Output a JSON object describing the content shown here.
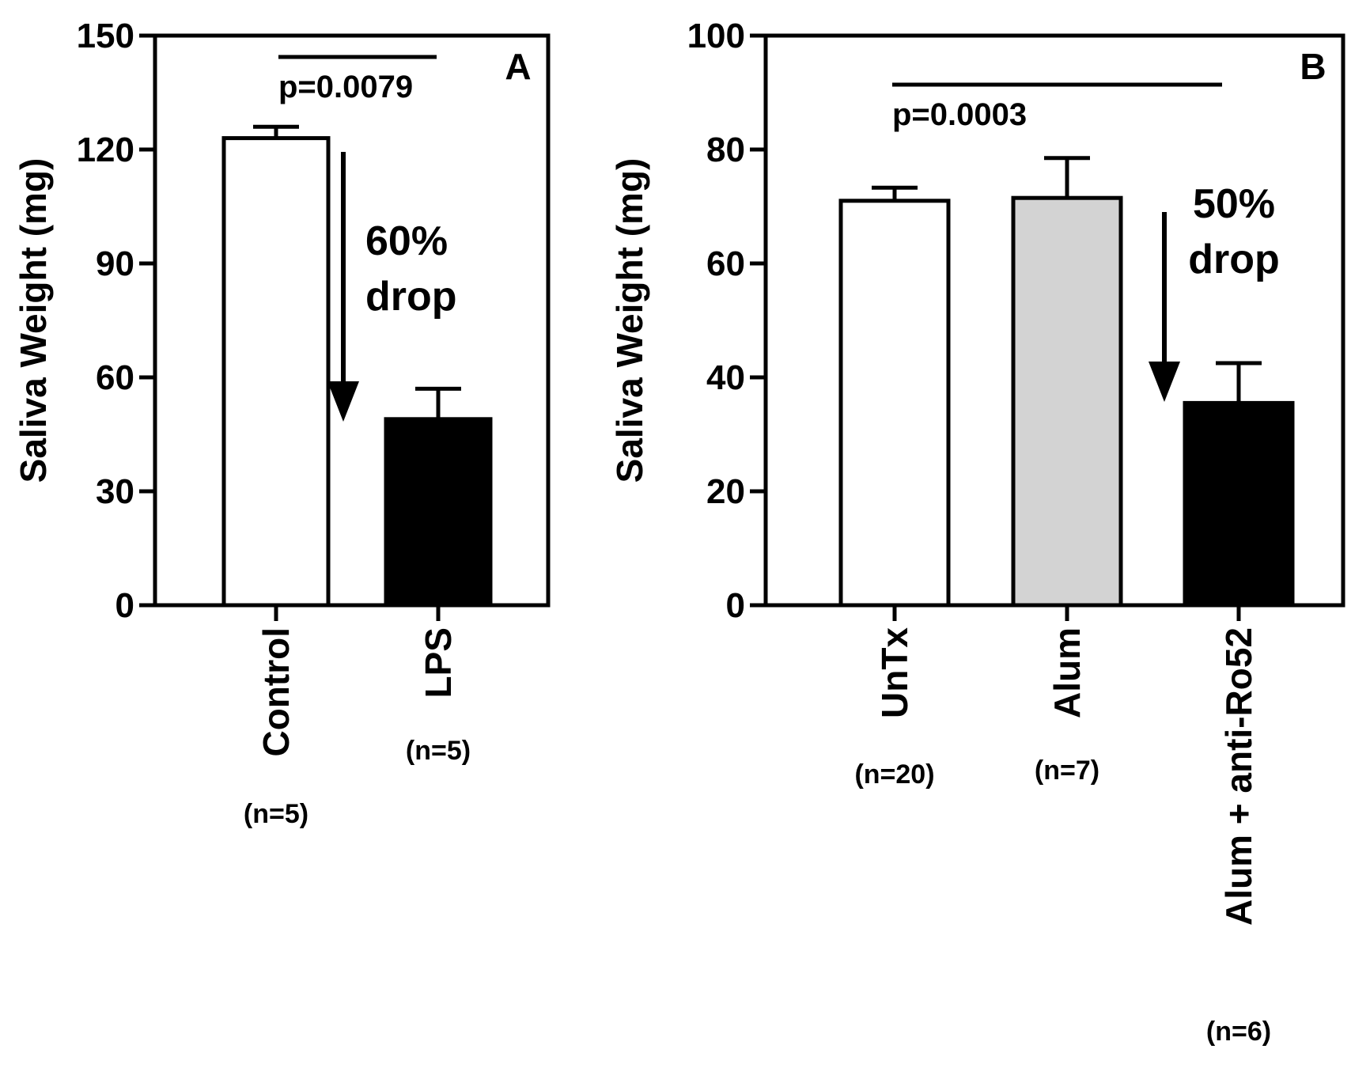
{
  "chart_data": [
    {
      "panel": "A",
      "type": "bar",
      "ylabel": "Saliva Weight  (mg)",
      "ylim": [
        0,
        150
      ],
      "yticks": [
        0,
        30,
        60,
        90,
        120,
        150
      ],
      "categories": [
        "Control",
        "LPS"
      ],
      "n_labels": [
        "(n=5)",
        "(n=5)"
      ],
      "values": [
        123,
        49
      ],
      "errors": [
        3,
        8
      ],
      "fills": [
        "#ffffff",
        "#000000"
      ],
      "p_value": "p=0.0079",
      "drop_text": [
        "60%",
        "drop"
      ]
    },
    {
      "panel": "B",
      "type": "bar",
      "ylabel": "Saliva Weight (mg)",
      "ylim": [
        0,
        100
      ],
      "yticks": [
        0,
        20,
        40,
        60,
        80,
        100
      ],
      "categories": [
        "UnTx",
        "Alum",
        "Alum + anti-Ro52"
      ],
      "n_labels": [
        "(n=20)",
        "(n=7)",
        "(n=6)"
      ],
      "values": [
        71,
        71.5,
        35.5
      ],
      "errors": [
        2.3,
        7,
        7
      ],
      "fills": [
        "#ffffff",
        "#d3d3d3",
        "#000000"
      ],
      "p_value": "p=0.0003",
      "drop_text": [
        "50%",
        "drop"
      ]
    }
  ]
}
